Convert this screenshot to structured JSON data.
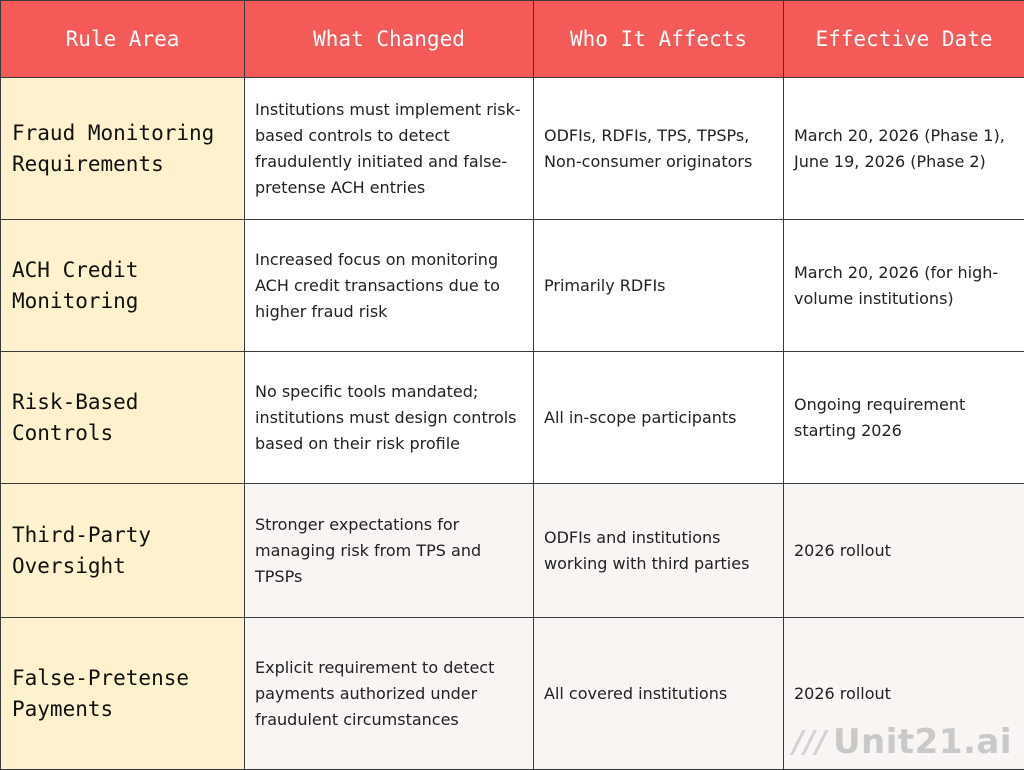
{
  "table": {
    "headers": [
      "Rule Area",
      "What Changed",
      "Who It Affects",
      "Effective Date"
    ],
    "rows": [
      {
        "area": "Fraud Monitoring Requirements",
        "changed": "Institutions must implement risk-based controls to detect fraudulently initiated and false-pretense ACH entries",
        "affects": "ODFIs, RDFIs, TPS, TPSPs, Non-consumer originators",
        "date": "March 20, 2026 (Phase 1), June 19, 2026 (Phase 2)"
      },
      {
        "area": "ACH Credit Monitoring",
        "changed": "Increased focus on monitoring ACH credit transactions due to higher fraud risk",
        "affects": "Primarily RDFIs",
        "date": "March 20, 2026 (for high-volume institutions)"
      },
      {
        "area": "Risk-Based Controls",
        "changed": "No specific tools mandated; institutions must design controls based on their risk profile",
        "affects": "All in-scope participants",
        "date": "Ongoing requirement starting 2026"
      },
      {
        "area": "Third-Party Oversight",
        "changed": "Stronger expectations for managing risk from TPS and TPSPs",
        "affects": "ODFIs and institutions working with third parties",
        "date": "2026 rollout"
      },
      {
        "area": "False-Pretense Payments",
        "changed": "Explicit requirement to detect payments authorized under fraudulent circumstances",
        "affects": "All covered institutions",
        "date": "2026 rollout"
      }
    ]
  },
  "watermark": {
    "mark": "///",
    "text": "Unit21.ai"
  },
  "colors": {
    "header_bg": "#f45b58",
    "area_bg": "#fdf2cd",
    "alt_row_bg": "#f8f5f3",
    "border": "#3a3a3a"
  }
}
